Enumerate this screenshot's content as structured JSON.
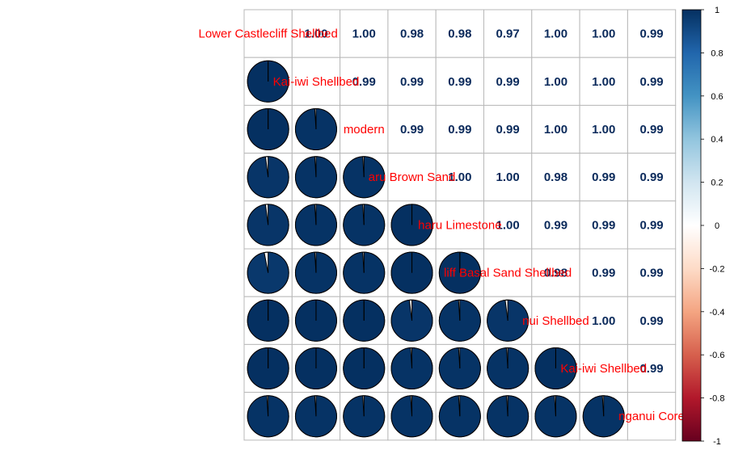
{
  "chart_data": {
    "type": "heatmap",
    "subtype": "correlation-matrix",
    "lower_method": "pie",
    "upper_method": "number",
    "variables": [
      "Lower Castlecliff Shellbed",
      "Kai-iwi Shellbed",
      "modern",
      "...aru Brown Sand",
      "...haru Limestone",
      "...liff Basal Sand Shellbed",
      "...nui Shellbed",
      "Kai-iwi Shellbed",
      "...nganui Core"
    ],
    "diagonal_labels": [
      "Lower Castlecliff Shellbed",
      "Kai-iwi Shellbed",
      "modern",
      "aru Brown Sand",
      "haru Limestone",
      "liff Basal Sand Shellbed",
      "nui Shellbed",
      "Kai-iwi Shellbed",
      "nganui Core"
    ],
    "matrix": [
      [
        1.0,
        1.0,
        1.0,
        0.98,
        0.98,
        0.97,
        1.0,
        1.0,
        0.99
      ],
      [
        1.0,
        1.0,
        0.99,
        0.99,
        0.99,
        0.99,
        1.0,
        1.0,
        0.99
      ],
      [
        1.0,
        0.99,
        1.0,
        0.99,
        0.99,
        0.99,
        1.0,
        1.0,
        0.99
      ],
      [
        0.98,
        0.99,
        0.99,
        1.0,
        1.0,
        1.0,
        0.98,
        0.99,
        0.99
      ],
      [
        0.98,
        0.99,
        0.99,
        1.0,
        1.0,
        1.0,
        0.99,
        0.99,
        0.99
      ],
      [
        0.97,
        0.99,
        0.99,
        1.0,
        1.0,
        1.0,
        0.98,
        0.99,
        0.99
      ],
      [
        1.0,
        1.0,
        1.0,
        0.98,
        0.99,
        0.98,
        1.0,
        1.0,
        0.99
      ],
      [
        1.0,
        1.0,
        1.0,
        0.99,
        0.99,
        0.99,
        1.0,
        1.0,
        0.99
      ],
      [
        0.99,
        0.99,
        0.99,
        0.99,
        0.99,
        0.99,
        0.99,
        0.99,
        1.0
      ]
    ],
    "colorbar": {
      "ticks": [
        "1",
        "0.8",
        "0.6",
        "0.4",
        "0.2",
        "0",
        "-0.2",
        "-0.4",
        "-0.6",
        "-0.8",
        "-1"
      ],
      "range": [
        -1,
        1
      ],
      "colors": [
        "#67001F",
        "#B2182B",
        "#D6604D",
        "#F4A582",
        "#FDDBC7",
        "#FFFFFF",
        "#D1E5F0",
        "#92C5DE",
        "#4393C3",
        "#2166AC",
        "#053061"
      ]
    },
    "label_color": "#FF0000",
    "value_color": "#0B2A5B",
    "pie_color": "#0B2A5B"
  }
}
